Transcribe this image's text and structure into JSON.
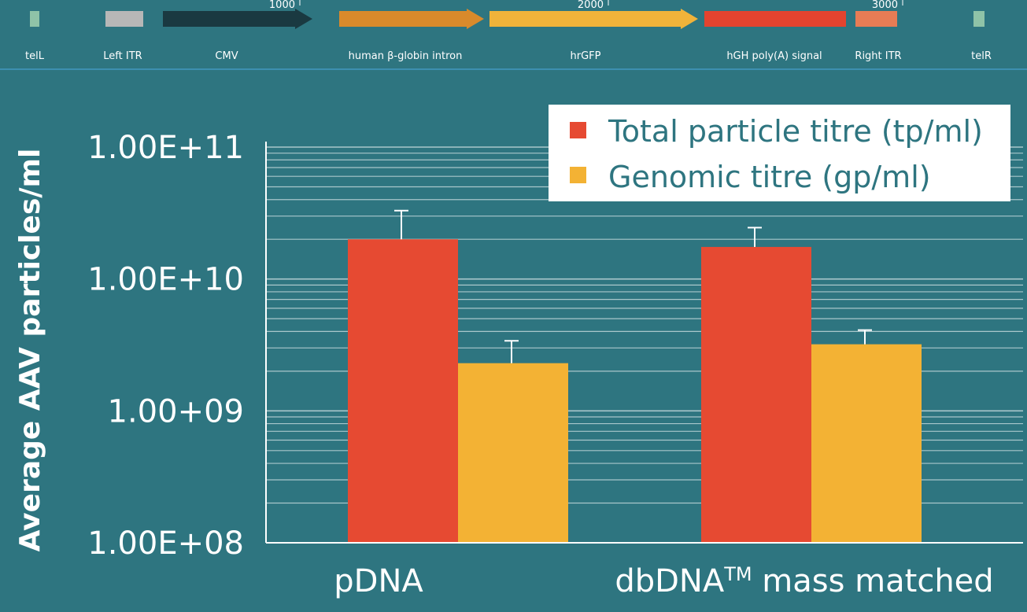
{
  "colors": {
    "background": "#2e7580",
    "total_particle": "#e64a32",
    "genomic": "#f3b234",
    "grid": "#a9c7cb",
    "axis": "#ffffff"
  },
  "plasmid_map": {
    "scale_ticks": [
      "1000",
      "2000",
      "3000"
    ],
    "features": [
      {
        "name": "telL",
        "color": "#8fc3a8",
        "shape": "box"
      },
      {
        "name": "Left ITR",
        "color": "#b7b7b7",
        "shape": "box"
      },
      {
        "name": "CMV",
        "color": "#1a3941",
        "shape": "arrow"
      },
      {
        "name": "human β-globin intron",
        "color": "#d98a2b",
        "shape": "arrow"
      },
      {
        "name": "hrGFP",
        "color": "#f0b33a",
        "shape": "arrow"
      },
      {
        "name": "hGH poly(A) signal",
        "color": "#e3432f",
        "shape": "box"
      },
      {
        "name": "Right ITR",
        "color": "#e77c55",
        "shape": "box"
      },
      {
        "name": "telR",
        "color": "#8fc3a8",
        "shape": "box"
      }
    ]
  },
  "chart_data": {
    "type": "bar",
    "ylabel": "Average AAV particles/ml",
    "yscale": "log",
    "ylim": [
      100000000,
      100000000000
    ],
    "ytick_labels": [
      "1.00E+11",
      "1.00E+10",
      "1.00+09",
      "1.00E+08"
    ],
    "categories": [
      "pDNA",
      "dbDNA™ mass matched"
    ],
    "series": [
      {
        "name": "Total particle titre (tp/ml)",
        "values": [
          20000000000,
          17500000000
        ],
        "error_plus": [
          13000000000,
          7000000000
        ]
      },
      {
        "name": "Genomic titre (gp/ml)",
        "values": [
          2300000000,
          3200000000
        ],
        "error_plus": [
          1100000000,
          900000000
        ]
      }
    ],
    "legend_position": "top-right",
    "grid": true
  }
}
